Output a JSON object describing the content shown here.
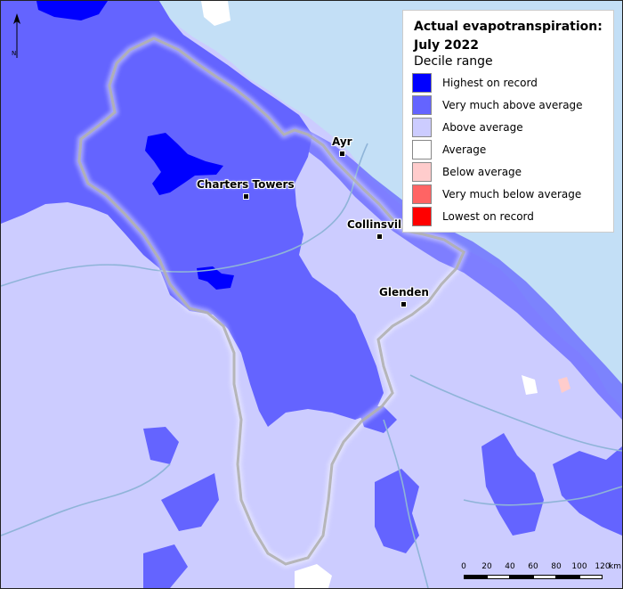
{
  "legend": {
    "title": "Actual evapotranspiration: July 2022",
    "subtitle": "Decile range",
    "items": [
      {
        "label": "Highest on record",
        "color": "#0000ff"
      },
      {
        "label": "Very much above average",
        "color": "#6464ff"
      },
      {
        "label": "Above average",
        "color": "#ccccff"
      },
      {
        "label": "Average",
        "color": "#ffffff"
      },
      {
        "label": "Below average",
        "color": "#ffcccc"
      },
      {
        "label": "Very much below average",
        "color": "#ff6464"
      },
      {
        "label": "Lowest on record",
        "color": "#ff0000"
      }
    ]
  },
  "towns": {
    "ayr": "Ayr",
    "charters_towers": "Charters Towers",
    "collinsville": "Collinsvil",
    "glenden": "Glenden"
  },
  "north_arrow": {
    "label": "N"
  },
  "scale": {
    "ticks": [
      "0",
      "20",
      "40",
      "60",
      "80",
      "100",
      "120"
    ],
    "unit": "km"
  },
  "colors": {
    "sea": "#c3dff6",
    "base": "#ccccff",
    "very_much_above": "#6464ff",
    "highest": "#0000ff",
    "average": "#ffffff",
    "rivers": "#8fb4d8",
    "boundary": "#808080"
  }
}
